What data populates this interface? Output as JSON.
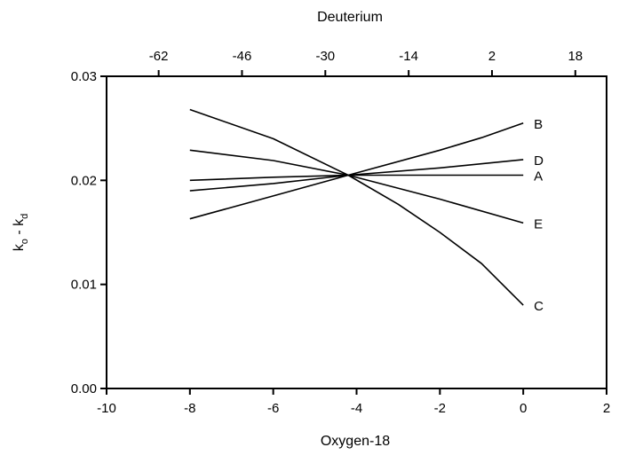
{
  "chart_data": {
    "type": "line",
    "title": "",
    "xlabel": "Oxygen-18",
    "x2label": "Deuterium",
    "ylabel": {
      "main": "k",
      "sub1": "o",
      "sep": " - ",
      "main2": "k",
      "sub2": "d"
    },
    "xlim": [
      -10,
      2
    ],
    "ylim": [
      0,
      0.03
    ],
    "x2lim": [
      -72,
      24
    ],
    "grid": false,
    "legend": "inline-right",
    "x_ticks": [
      {
        "value": -10,
        "label": "-10"
      },
      {
        "value": -8,
        "label": "-8"
      },
      {
        "value": -6,
        "label": "-6"
      },
      {
        "value": -4,
        "label": "-4"
      },
      {
        "value": -2,
        "label": "-2"
      },
      {
        "value": 0,
        "label": "0"
      },
      {
        "value": 2,
        "label": "2"
      }
    ],
    "x2_ticks": [
      {
        "value": -62,
        "label": "-62"
      },
      {
        "value": -46,
        "label": "-46"
      },
      {
        "value": -30,
        "label": "-30"
      },
      {
        "value": -14,
        "label": "-14"
      },
      {
        "value": 2,
        "label": "2"
      },
      {
        "value": 18,
        "label": "18"
      }
    ],
    "y_ticks": [
      {
        "value": 0,
        "label": "0.00"
      },
      {
        "value": 0.01,
        "label": "0.01"
      },
      {
        "value": 0.02,
        "label": "0.02"
      },
      {
        "value": 0.03,
        "label": "0.03"
      }
    ],
    "series": [
      {
        "name": "B",
        "x": [
          -8,
          -6,
          -4.2,
          -2,
          -1,
          0
        ],
        "y": [
          0.0163,
          0.0185,
          0.0205,
          0.0229,
          0.0241,
          0.0255
        ]
      },
      {
        "name": "D",
        "x": [
          -8,
          -6,
          -4.2,
          -2,
          0
        ],
        "y": [
          0.019,
          0.0197,
          0.0205,
          0.0212,
          0.022
        ]
      },
      {
        "name": "A",
        "x": [
          -8,
          -6,
          -4.2,
          -2,
          0
        ],
        "y": [
          0.02,
          0.0203,
          0.0205,
          0.0205,
          0.0205
        ]
      },
      {
        "name": "E",
        "x": [
          -8,
          -6,
          -4.2,
          -2,
          0
        ],
        "y": [
          0.0229,
          0.0219,
          0.0205,
          0.0182,
          0.0159
        ]
      },
      {
        "name": "C",
        "x": [
          -8,
          -6,
          -4.2,
          -3,
          -2,
          -1,
          0
        ],
        "y": [
          0.0268,
          0.024,
          0.0205,
          0.0177,
          0.015,
          0.012,
          0.008
        ]
      }
    ],
    "series_colors": {
      "stroke": "#000000"
    }
  }
}
